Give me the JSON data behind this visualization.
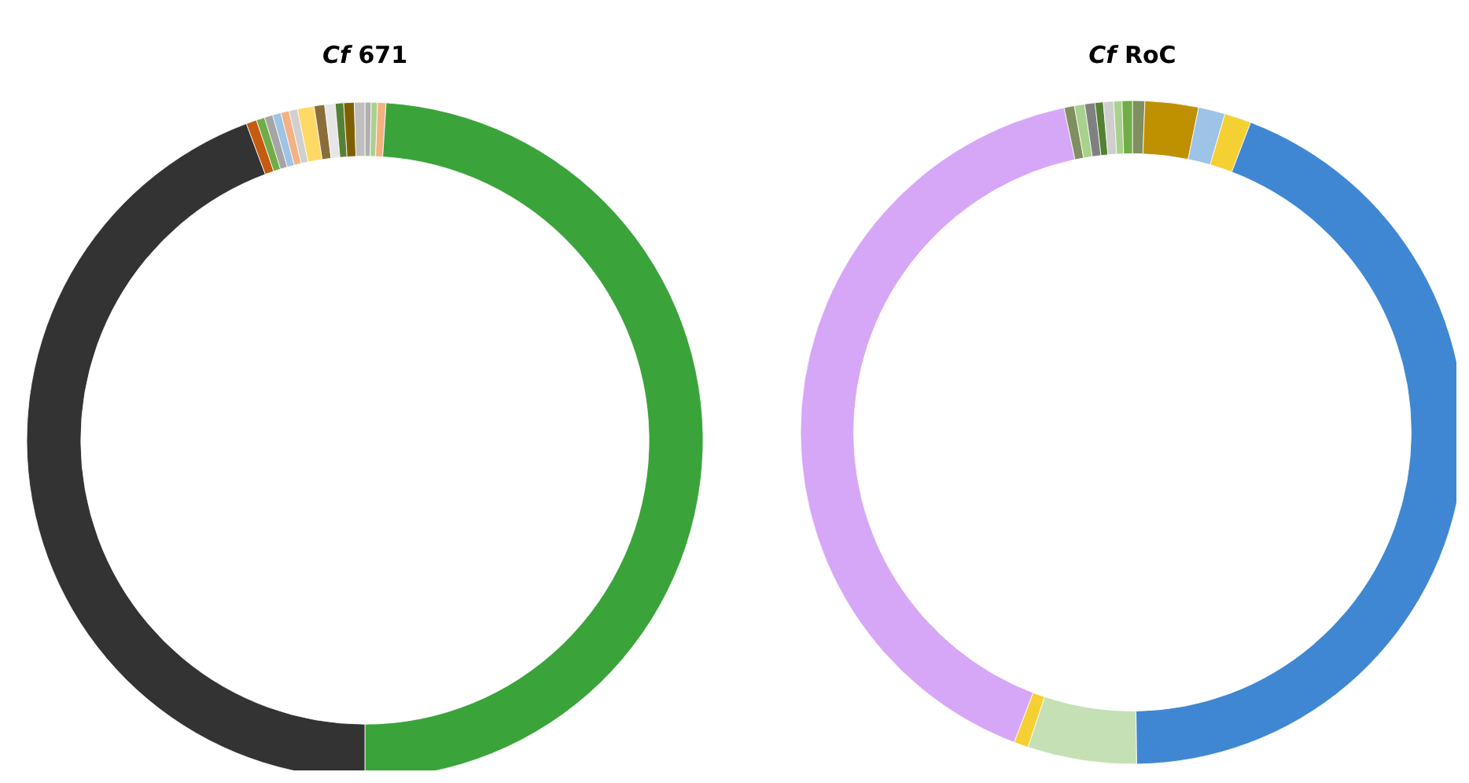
{
  "chart_data": [
    {
      "type": "donut",
      "title": "Cf 671",
      "categories": [
        null,
        null,
        null,
        null,
        null,
        null,
        null,
        null,
        null,
        null,
        null,
        null,
        null,
        null,
        null,
        null,
        null
      ],
      "values": [
        0.3,
        0.3,
        0.4,
        49.0,
        44.3,
        0.5,
        0.4,
        0.4,
        0.4,
        0.4,
        0.4,
        0.8,
        0.5,
        0.5,
        0.4,
        0.5,
        0.5
      ],
      "colors": [
        "#b0b0b0",
        "#a9d18e",
        "#f4b183",
        "#3aa33a",
        "#333333",
        "#c55a11",
        "#70ad47",
        "#a5a5a5",
        "#9dc3e6",
        "#f4b183",
        "#d0d0d0",
        "#ffd966",
        "#8b6d3a",
        "#e7e6e6",
        "#548235",
        "#7f6000",
        "#bfbfbf"
      ]
    },
    {
      "type": "donut",
      "title": "Cf RoC",
      "categories": [
        null,
        null,
        null,
        null,
        null,
        null,
        null,
        null,
        null,
        null,
        null,
        null,
        null,
        null,
        null
      ],
      "values": [
        0.6,
        2.6,
        1.3,
        1.3,
        44.0,
        5.3,
        0.7,
        40.9,
        0.5,
        0.5,
        0.5,
        0.4,
        0.5,
        0.4,
        0.5
      ],
      "colors": [
        "#7f8f60",
        "#bf9000",
        "#9dc3e6",
        "#f5d033",
        "#3f87d2",
        "#c5e0b4",
        "#f5d033",
        "#d6a7f7",
        "#7f8f60",
        "#a9d18e",
        "#808080",
        "#548235",
        "#d0cece",
        "#a9d18e",
        "#70ad47"
      ]
    }
  ]
}
